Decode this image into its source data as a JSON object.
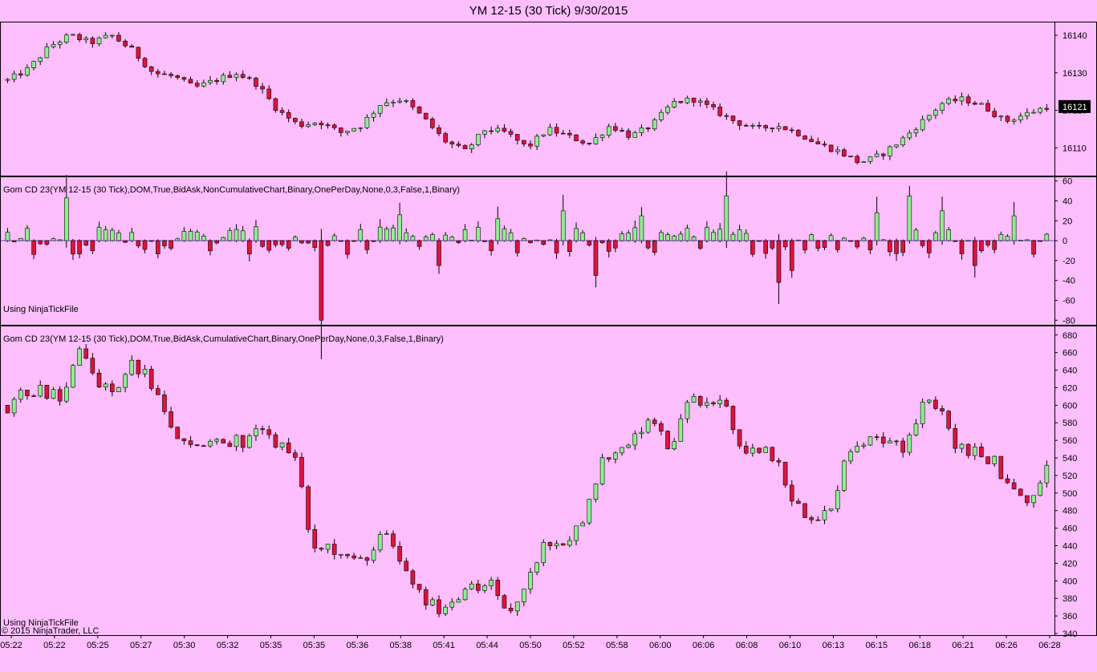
{
  "title": "YM 12-15 (30 Tick)  9/30/2015",
  "chart_data": [
    {
      "type": "candlestick",
      "panel": "price",
      "y_ticks": [
        "16110",
        "16120",
        "16130",
        "16140"
      ],
      "ylim": [
        16103,
        16143
      ],
      "last_price_label": "16121",
      "anchors": [
        16128,
        16131,
        16137,
        16140,
        16138,
        16140,
        16136,
        16130,
        16129,
        16126,
        16128,
        16130,
        16127,
        16120,
        16116,
        16117,
        16114,
        16116,
        16122,
        16123,
        16118,
        16112,
        16109,
        16115,
        16114,
        16110,
        16115,
        16113,
        16111,
        16116,
        16113,
        16116,
        16122,
        16123,
        16120,
        16117,
        16115,
        16116,
        16114,
        16111,
        16109,
        16106,
        16108,
        16112,
        16117,
        16122,
        16123,
        16121,
        16117,
        16119,
        16121
      ]
    },
    {
      "type": "bar",
      "panel": "delta",
      "series_label": "Gom CD 23(YM 12-15 (30 Tick),DOM,True,BidAsk,NonCumulativeChart,Binary,OnePerDay,None,0,3,False,1,Binary)",
      "note": "Using NinjaTickFile",
      "y_ticks": [
        "60",
        "40",
        "20",
        "0",
        "-20",
        "-40",
        "-60",
        "-80"
      ],
      "ylim": [
        -83,
        63
      ],
      "spikes": [
        [
          9,
          43
        ],
        [
          48,
          -80
        ],
        [
          60,
          26
        ],
        [
          66,
          -25
        ],
        [
          75,
          22
        ],
        [
          85,
          30
        ],
        [
          90,
          -35
        ],
        [
          97,
          25
        ],
        [
          110,
          45
        ],
        [
          118,
          -42
        ],
        [
          120,
          -30
        ],
        [
          133,
          28
        ],
        [
          138,
          45
        ],
        [
          143,
          30
        ],
        [
          148,
          -25
        ],
        [
          154,
          25
        ]
      ]
    },
    {
      "type": "candlestick",
      "panel": "cumulative",
      "series_label": "Gom CD 23(YM 12-15 (30 Tick),DOM,True,BidAsk,CumulativeChart,Binary,OnePerDay,None,0,3,False,1,Binary)",
      "note": "Using NinjaTickFile",
      "y_ticks": [
        "680",
        "660",
        "640",
        "620",
        "600",
        "580",
        "560",
        "540",
        "520",
        "500",
        "480",
        "460",
        "440",
        "420",
        "400",
        "380",
        "360",
        "340"
      ],
      "ylim": [
        340,
        688
      ],
      "anchors": [
        600,
        615,
        618,
        605,
        666,
        625,
        620,
        648,
        625,
        580,
        550,
        560,
        555,
        560,
        565,
        560,
        545,
        435,
        440,
        420,
        430,
        455,
        420,
        390,
        365,
        375,
        390,
        395,
        365,
        400,
        440,
        445,
        460,
        530,
        540,
        570,
        578,
        548,
        605,
        600,
        610,
        535,
        550,
        530,
        485,
        475,
        480,
        555,
        560,
        565,
        555,
        600,
        595,
        555,
        545,
        540,
        500,
        485,
        540
      ]
    }
  ],
  "x_ticks": [
    "05:22",
    "05:22",
    "05:25",
    "05:27",
    "05:30",
    "05:32",
    "05:35",
    "05:35",
    "05:36",
    "05:38",
    "05:41",
    "05:44",
    "05:50",
    "05:52",
    "05:58",
    "06:00",
    "06:06",
    "06:08",
    "06:10",
    "06:13",
    "06:15",
    "06:18",
    "06:21",
    "06:26",
    "06:28"
  ],
  "copyright": "© 2015 NinjaTrader, LLC",
  "colors": {
    "background": "#ffbfff",
    "up_candle": "#90ee90",
    "down_candle": "#dc143c",
    "wick": "#000000",
    "grid": "#000000"
  }
}
